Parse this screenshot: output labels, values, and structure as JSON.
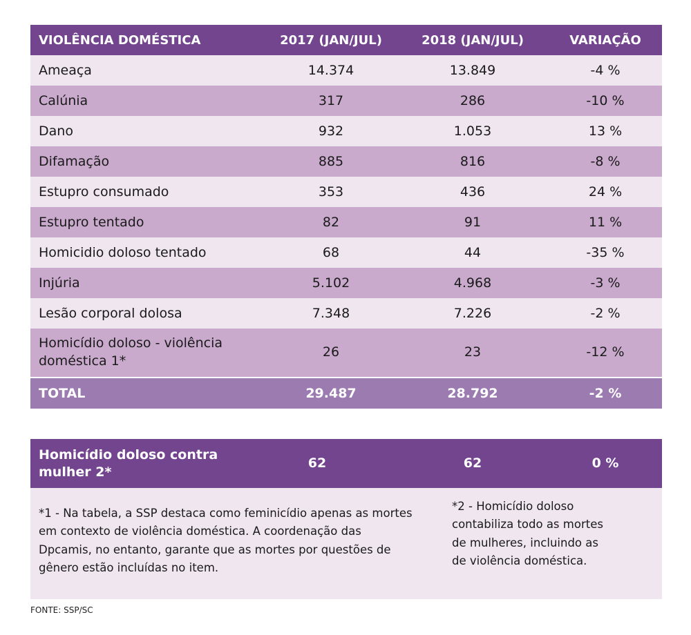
{
  "chart_data": {
    "type": "table",
    "columns": [
      "VIOLÊNCIA DOMÉSTICA",
      "2017 (JAN/JUL)",
      "2018 (JAN/JUL)",
      "VARIAÇÃO"
    ],
    "rows": [
      [
        "Ameaça",
        "14.374",
        "13.849",
        "-4 %"
      ],
      [
        "Calúnia",
        "317",
        "286",
        "-10 %"
      ],
      [
        "Dano",
        "932",
        "1.053",
        "13 %"
      ],
      [
        "Difamação",
        "885",
        "816",
        "-8 %"
      ],
      [
        "Estupro consumado",
        "353",
        "436",
        "24 %"
      ],
      [
        "Estupro tentado",
        "82",
        "91",
        "11 %"
      ],
      [
        "Homicidio doloso tentado",
        "68",
        "44",
        "-35 %"
      ],
      [
        "Injúria",
        "5.102",
        "4.968",
        "-3 %"
      ],
      [
        "Lesão corporal dolosa",
        "7.348",
        "7.226",
        "-2 %"
      ],
      [
        "Homicídio doloso - violência doméstica 1*",
        "26",
        "23",
        "-12 %"
      ]
    ],
    "total": [
      "TOTAL",
      "29.487",
      "28.792",
      "-2 %"
    ],
    "second": [
      "Homicídio doloso contra mulher 2*",
      "62",
      "62",
      "0 %"
    ]
  },
  "notes": {
    "n1": "*1 - Na tabela, a SSP destaca como feminicídio apenas as mortes em contexto de violência doméstica. A coordenação das Dpcamis, no entanto, garante que as mortes por questões de gênero estão incluídas no item.",
    "n2": "*2 - Homicídio doloso contabiliza todo as mortes de mulheres, incluindo as de violência doméstica."
  },
  "source": "FONTE: SSP/SC",
  "colors": {
    "header": "#74458f",
    "row_light": "#efe6f0",
    "row_dark": "#c9aacd",
    "total": "#9c7bb0"
  }
}
